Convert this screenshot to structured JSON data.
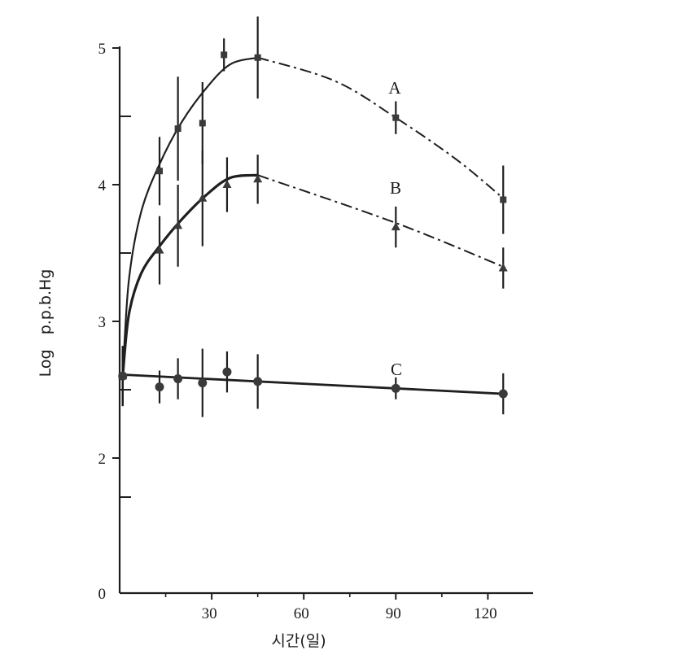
{
  "chart_data": {
    "type": "line",
    "title": "",
    "xlabel": "시간(일)",
    "ylabel": "Log   p.p.b.Hg",
    "xlim": [
      0,
      133
    ],
    "ylim": [
      0,
      5
    ],
    "x_ticks": [
      "30",
      "60",
      "90",
      "120"
    ],
    "x_tick_values": [
      30,
      60,
      90,
      120
    ],
    "y_ticks": [
      "0",
      "2",
      "3",
      "4",
      "5"
    ],
    "y_tick_values": [
      0,
      2,
      3,
      4,
      5
    ],
    "y_axis_break": true,
    "grid": false,
    "legend": "inline labels",
    "series": [
      {
        "name": "A",
        "marker": "square",
        "solid_until": 45,
        "points": [
          {
            "x": 1,
            "y": 2.6,
            "err": 0.22
          },
          {
            "x": 13,
            "y": 4.1,
            "err": 0.25
          },
          {
            "x": 19,
            "y": 4.41,
            "err": 0.38
          },
          {
            "x": 27,
            "y": 4.45,
            "err": 0.3
          },
          {
            "x": 34,
            "y": 4.95,
            "err": 0.12
          },
          {
            "x": 45,
            "y": 4.93,
            "err": 0.3
          },
          {
            "x": 90,
            "y": 4.49,
            "err": 0.12
          },
          {
            "x": 125,
            "y": 3.89,
            "err": 0.25
          }
        ]
      },
      {
        "name": "B",
        "marker": "triangle",
        "solid_until": 45,
        "points": [
          {
            "x": 1,
            "y": 2.6,
            "err": 0.22
          },
          {
            "x": 13,
            "y": 3.52,
            "err": 0.25
          },
          {
            "x": 19,
            "y": 3.7,
            "err": 0.3
          },
          {
            "x": 27,
            "y": 3.9,
            "err": 0.35
          },
          {
            "x": 35,
            "y": 4.0,
            "err": 0.2
          },
          {
            "x": 45,
            "y": 4.04,
            "err": 0.18
          },
          {
            "x": 90,
            "y": 3.69,
            "err": 0.15
          },
          {
            "x": 125,
            "y": 3.39,
            "err": 0.15
          }
        ]
      },
      {
        "name": "C",
        "marker": "circle",
        "points": [
          {
            "x": 1,
            "y": 2.6,
            "err": 0.2
          },
          {
            "x": 13,
            "y": 2.52,
            "err": 0.12
          },
          {
            "x": 19,
            "y": 2.58,
            "err": 0.15
          },
          {
            "x": 27,
            "y": 2.55,
            "err": 0.25
          },
          {
            "x": 35,
            "y": 2.63,
            "err": 0.15
          },
          {
            "x": 45,
            "y": 2.56,
            "err": 0.2
          },
          {
            "x": 90,
            "y": 2.51,
            "err": 0.08
          },
          {
            "x": 125,
            "y": 2.47,
            "err": 0.15
          }
        ]
      }
    ]
  }
}
